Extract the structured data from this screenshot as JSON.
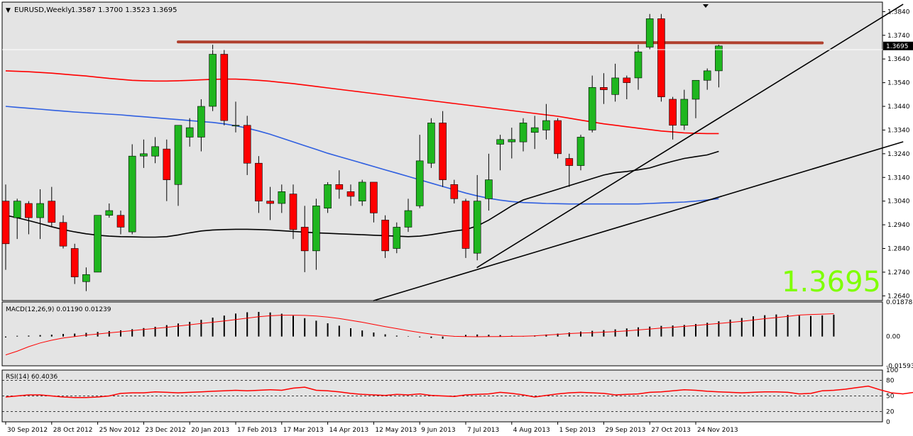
{
  "colors": {
    "background": "#e4e4e4",
    "page": "#ffffff",
    "bull": "#1fb61f",
    "bear": "#ff0000",
    "ma_red": "#ff0000",
    "ma_blue": "#2f5fe0",
    "ma_black": "#000000",
    "resistance": "#b0402e",
    "big_price": "#7fff00",
    "grid_text": "#000000"
  },
  "header": {
    "arrow_glyph": "▼",
    "symbol_label": "EURUSD,Weekly",
    "ohlc_label": "1.3587 1.3700 1.3523 1.3695"
  },
  "big_price": "1.3695",
  "price_axis": {
    "ticks": [
      "1.3840",
      "1.3740",
      "1.3640",
      "1.3540",
      "1.3440",
      "1.3340",
      "1.3240",
      "1.3140",
      "1.3040",
      "1.2940",
      "1.2840",
      "1.2740",
      "1.2640"
    ],
    "current_label": "1.3695"
  },
  "macd": {
    "label": "MACD(12,26,9) 0.01190 0.01239",
    "ticks": [
      "0.01878",
      "0.00",
      "-0.01593"
    ]
  },
  "rsi": {
    "label": "RSI(14) 60.4036",
    "ticks": [
      "100",
      "80",
      "50",
      "20",
      "0"
    ]
  },
  "time_axis": [
    "30 Sep 2012",
    "28 Oct 2012",
    "25 Nov 2012",
    "23 Dec 2012",
    "20 Jan 2013",
    "17 Feb 2013",
    "17 Mar 2013",
    "14 Apr 2013",
    "12 May 2013",
    "9 Jun 2013",
    "7 Jul 2013",
    "4 Aug 2013",
    "1 Sep 2013",
    "29 Sep 2013",
    "27 Oct 2013",
    "24 Nov 2013"
  ],
  "chart_data": {
    "type": "candlestick",
    "symbol": "EURUSD",
    "timeframe": "Weekly",
    "ylim": [
      1.262,
      1.388
    ],
    "candles": [
      {
        "o": 1.304,
        "h": 1.311,
        "l": 1.275,
        "c": 1.286
      },
      {
        "o": 1.297,
        "h": 1.305,
        "l": 1.288,
        "c": 1.304
      },
      {
        "o": 1.303,
        "h": 1.304,
        "l": 1.29,
        "c": 1.297
      },
      {
        "o": 1.297,
        "h": 1.309,
        "l": 1.288,
        "c": 1.303
      },
      {
        "o": 1.304,
        "h": 1.31,
        "l": 1.293,
        "c": 1.295
      },
      {
        "o": 1.295,
        "h": 1.298,
        "l": 1.284,
        "c": 1.285
      },
      {
        "o": 1.284,
        "h": 1.286,
        "l": 1.269,
        "c": 1.272
      },
      {
        "o": 1.27,
        "h": 1.276,
        "l": 1.266,
        "c": 1.273
      },
      {
        "o": 1.274,
        "h": 1.298,
        "l": 1.274,
        "c": 1.298
      },
      {
        "o": 1.298,
        "h": 1.303,
        "l": 1.297,
        "c": 1.3
      },
      {
        "o": 1.298,
        "h": 1.3,
        "l": 1.29,
        "c": 1.293
      },
      {
        "o": 1.291,
        "h": 1.328,
        "l": 1.29,
        "c": 1.323
      },
      {
        "o": 1.323,
        "h": 1.33,
        "l": 1.318,
        "c": 1.324
      },
      {
        "o": 1.323,
        "h": 1.331,
        "l": 1.32,
        "c": 1.327
      },
      {
        "o": 1.326,
        "h": 1.33,
        "l": 1.304,
        "c": 1.313
      },
      {
        "o": 1.311,
        "h": 1.336,
        "l": 1.302,
        "c": 1.336
      },
      {
        "o": 1.331,
        "h": 1.339,
        "l": 1.327,
        "c": 1.335
      },
      {
        "o": 1.331,
        "h": 1.347,
        "l": 1.325,
        "c": 1.344
      },
      {
        "o": 1.344,
        "h": 1.37,
        "l": 1.342,
        "c": 1.366
      },
      {
        "o": 1.366,
        "h": 1.368,
        "l": 1.336,
        "c": 1.338
      },
      {
        "o": 1.336,
        "h": 1.346,
        "l": 1.333,
        "c": 1.336
      },
      {
        "o": 1.336,
        "h": 1.34,
        "l": 1.315,
        "c": 1.32
      },
      {
        "o": 1.32,
        "h": 1.323,
        "l": 1.299,
        "c": 1.304
      },
      {
        "o": 1.304,
        "h": 1.31,
        "l": 1.296,
        "c": 1.303
      },
      {
        "o": 1.303,
        "h": 1.311,
        "l": 1.299,
        "c": 1.308
      },
      {
        "o": 1.307,
        "h": 1.311,
        "l": 1.288,
        "c": 1.292
      },
      {
        "o": 1.293,
        "h": 1.302,
        "l": 1.274,
        "c": 1.283
      },
      {
        "o": 1.283,
        "h": 1.305,
        "l": 1.275,
        "c": 1.302
      },
      {
        "o": 1.301,
        "h": 1.312,
        "l": 1.299,
        "c": 1.311
      },
      {
        "o": 1.311,
        "h": 1.317,
        "l": 1.305,
        "c": 1.309
      },
      {
        "o": 1.308,
        "h": 1.311,
        "l": 1.302,
        "c": 1.306
      },
      {
        "o": 1.304,
        "h": 1.313,
        "l": 1.302,
        "c": 1.312
      },
      {
        "o": 1.312,
        "h": 1.312,
        "l": 1.295,
        "c": 1.299
      },
      {
        "o": 1.296,
        "h": 1.298,
        "l": 1.28,
        "c": 1.283
      },
      {
        "o": 1.284,
        "h": 1.295,
        "l": 1.282,
        "c": 1.293
      },
      {
        "o": 1.293,
        "h": 1.305,
        "l": 1.291,
        "c": 1.3
      },
      {
        "o": 1.302,
        "h": 1.332,
        "l": 1.301,
        "c": 1.321
      },
      {
        "o": 1.32,
        "h": 1.339,
        "l": 1.318,
        "c": 1.337
      },
      {
        "o": 1.337,
        "h": 1.342,
        "l": 1.31,
        "c": 1.313
      },
      {
        "o": 1.311,
        "h": 1.313,
        "l": 1.303,
        "c": 1.305
      },
      {
        "o": 1.304,
        "h": 1.305,
        "l": 1.28,
        "c": 1.284
      },
      {
        "o": 1.282,
        "h": 1.315,
        "l": 1.279,
        "c": 1.304
      },
      {
        "o": 1.305,
        "h": 1.324,
        "l": 1.3,
        "c": 1.313
      },
      {
        "o": 1.328,
        "h": 1.332,
        "l": 1.317,
        "c": 1.33
      },
      {
        "o": 1.329,
        "h": 1.335,
        "l": 1.322,
        "c": 1.33
      },
      {
        "o": 1.329,
        "h": 1.339,
        "l": 1.325,
        "c": 1.337
      },
      {
        "o": 1.333,
        "h": 1.34,
        "l": 1.326,
        "c": 1.335
      },
      {
        "o": 1.334,
        "h": 1.345,
        "l": 1.33,
        "c": 1.338
      },
      {
        "o": 1.338,
        "h": 1.339,
        "l": 1.322,
        "c": 1.324
      },
      {
        "o": 1.322,
        "h": 1.324,
        "l": 1.31,
        "c": 1.319
      },
      {
        "o": 1.319,
        "h": 1.332,
        "l": 1.317,
        "c": 1.331
      },
      {
        "o": 1.334,
        "h": 1.357,
        "l": 1.333,
        "c": 1.352
      },
      {
        "o": 1.352,
        "h": 1.358,
        "l": 1.345,
        "c": 1.351
      },
      {
        "o": 1.349,
        "h": 1.362,
        "l": 1.346,
        "c": 1.356
      },
      {
        "o": 1.356,
        "h": 1.357,
        "l": 1.347,
        "c": 1.354
      },
      {
        "o": 1.356,
        "h": 1.37,
        "l": 1.351,
        "c": 1.367
      },
      {
        "o": 1.369,
        "h": 1.383,
        "l": 1.368,
        "c": 1.381
      },
      {
        "o": 1.381,
        "h": 1.383,
        "l": 1.346,
        "c": 1.348
      },
      {
        "o": 1.347,
        "h": 1.348,
        "l": 1.33,
        "c": 1.336
      },
      {
        "o": 1.336,
        "h": 1.351,
        "l": 1.334,
        "c": 1.347
      },
      {
        "o": 1.347,
        "h": 1.354,
        "l": 1.339,
        "c": 1.355
      },
      {
        "o": 1.355,
        "h": 1.36,
        "l": 1.351,
        "c": 1.359
      },
      {
        "o": 1.359,
        "h": 1.37,
        "l": 1.352,
        "c": 1.3695
      }
    ],
    "overlays": {
      "ma_red": [
        1.359,
        1.3588,
        1.3586,
        1.3583,
        1.358,
        1.3576,
        1.3572,
        1.3568,
        1.3563,
        1.3558,
        1.3554,
        1.355,
        1.3548,
        1.3547,
        1.3547,
        1.3548,
        1.355,
        1.3552,
        1.3554,
        1.3555,
        1.3555,
        1.3553,
        1.355,
        1.3546,
        1.3541,
        1.3536,
        1.353,
        1.3524,
        1.3518,
        1.3512,
        1.3506,
        1.35,
        1.3494,
        1.3488,
        1.3482,
        1.3476,
        1.347,
        1.3464,
        1.3458,
        1.3452,
        1.3446,
        1.344,
        1.3434,
        1.3428,
        1.3422,
        1.3416,
        1.341,
        1.3404,
        1.3398,
        1.339,
        1.3382,
        1.3374,
        1.3366,
        1.336,
        1.3354,
        1.3348,
        1.3342,
        1.3336,
        1.3332,
        1.3328,
        1.3326,
        1.3325,
        1.3325
      ],
      "ma_blue": [
        1.344,
        1.3436,
        1.3432,
        1.3428,
        1.3424,
        1.342,
        1.3416,
        1.3413,
        1.341,
        1.3407,
        1.3404,
        1.34,
        1.3396,
        1.3392,
        1.3388,
        1.3384,
        1.338,
        1.3376,
        1.3372,
        1.3366,
        1.3358,
        1.3348,
        1.3336,
        1.3322,
        1.3306,
        1.329,
        1.3274,
        1.3258,
        1.3242,
        1.3228,
        1.3214,
        1.32,
        1.3186,
        1.3172,
        1.3158,
        1.3144,
        1.313,
        1.3116,
        1.3102,
        1.3088,
        1.3074,
        1.3062,
        1.3052,
        1.3044,
        1.3038,
        1.3034,
        1.3032,
        1.303,
        1.3029,
        1.3028,
        1.3028,
        1.3028,
        1.3028,
        1.3028,
        1.3028,
        1.3028,
        1.303,
        1.3032,
        1.3034,
        1.3036,
        1.304,
        1.3045,
        1.305
      ],
      "ma_black": [
        1.298,
        1.297,
        1.2958,
        1.2945,
        1.2932,
        1.292,
        1.291,
        1.2902,
        1.2896,
        1.2892,
        1.289,
        1.2889,
        1.2888,
        1.2888,
        1.289,
        1.2897,
        1.2906,
        1.2914,
        1.2918,
        1.292,
        1.2921,
        1.2921,
        1.292,
        1.2918,
        1.2915,
        1.2912,
        1.2909,
        1.2906,
        1.2904,
        1.2902,
        1.29,
        1.2898,
        1.2896,
        1.2894,
        1.2892,
        1.289,
        1.2892,
        1.2898,
        1.2906,
        1.2914,
        1.292,
        1.2935,
        1.296,
        1.299,
        1.302,
        1.3045,
        1.306,
        1.3075,
        1.309,
        1.3105,
        1.312,
        1.3135,
        1.315,
        1.316,
        1.3165,
        1.3172,
        1.318,
        1.3195,
        1.3208,
        1.322,
        1.3228,
        1.3235,
        1.325
      ]
    },
    "trendlines": [
      {
        "kind": "resistance",
        "from": {
          "bar": 15,
          "price": 1.3712
        },
        "to": {
          "bar": 71,
          "price": 1.3708
        }
      },
      {
        "kind": "support",
        "from": {
          "bar": 32,
          "price": 1.262
        },
        "to": {
          "bar": 78,
          "price": 1.329
        }
      },
      {
        "kind": "support",
        "from": {
          "bar": 41,
          "price": 1.276
        },
        "to": {
          "bar": 78,
          "price": 1.387
        }
      }
    ],
    "macd": {
      "ylim": [
        -0.01593,
        0.01878
      ],
      "histogram": [
        -0.0005,
        0.0004,
        0.0005,
        0.0008,
        0.001,
        0.0014,
        0.0016,
        0.002,
        0.0025,
        0.003,
        0.0034,
        0.004,
        0.0046,
        0.0053,
        0.0062,
        0.0071,
        0.008,
        0.0091,
        0.0103,
        0.0114,
        0.0125,
        0.0132,
        0.0134,
        0.0131,
        0.0124,
        0.0113,
        0.01,
        0.0086,
        0.0072,
        0.0059,
        0.0045,
        0.0033,
        0.0022,
        0.0012,
        0.0005,
        0.0002,
        -0.0004,
        -0.0008,
        -0.0012,
        0.0002,
        0.0009,
        0.0011,
        0.001,
        0.0008,
        0.0005,
        0.0002,
        0.0006,
        0.0011,
        0.0016,
        0.0022,
        0.0027,
        0.0031,
        0.0035,
        0.0039,
        0.0044,
        0.005,
        0.0054,
        0.0058,
        0.006,
        0.0063,
        0.0068,
        0.0075,
        0.0083,
        0.0092,
        0.0101,
        0.011,
        0.0116,
        0.012,
        0.0118,
        0.0114,
        0.0112,
        0.0115,
        0.0119
      ],
      "signal": [
        -0.01,
        -0.008,
        -0.0055,
        -0.0035,
        -0.002,
        -0.0008,
        0.0,
        0.0008,
        0.0014,
        0.002,
        0.0026,
        0.0032,
        0.0038,
        0.0044,
        0.005,
        0.0057,
        0.0064,
        0.0071,
        0.0078,
        0.0085,
        0.0092,
        0.01,
        0.0108,
        0.0113,
        0.0116,
        0.0116,
        0.0115,
        0.0112,
        0.0106,
        0.0098,
        0.0088,
        0.0078,
        0.0066,
        0.0054,
        0.0043,
        0.0032,
        0.0022,
        0.0013,
        0.0006,
        0.0001,
        0.0,
        -0.0001,
        0.0,
        0.0,
        0.0001,
        0.0002,
        0.0004,
        0.0008,
        0.0012,
        0.0016,
        0.0019,
        0.0021,
        0.0024,
        0.0027,
        0.0031,
        0.0036,
        0.0041,
        0.0046,
        0.005,
        0.0055,
        0.006,
        0.0066,
        0.0071,
        0.0077,
        0.0083,
        0.009,
        0.0097,
        0.0103,
        0.011,
        0.0117,
        0.012,
        0.0122,
        0.0124
      ]
    },
    "rsi": {
      "ylim": [
        0,
        100
      ],
      "levels": [
        80,
        50,
        20
      ],
      "values": [
        48,
        50,
        52,
        52,
        50,
        48,
        47,
        47,
        48,
        50,
        55,
        56,
        56,
        58,
        57,
        56,
        57,
        58,
        59,
        60,
        61,
        60,
        61,
        62,
        61,
        65,
        67,
        61,
        60,
        58,
        55,
        53,
        52,
        51,
        53,
        52,
        54,
        51,
        50,
        49,
        52,
        53,
        54,
        57,
        55,
        52,
        48,
        51,
        54,
        56,
        57,
        56,
        55,
        52,
        53,
        54,
        57,
        58,
        60,
        62,
        61,
        59,
        58,
        57,
        56,
        57,
        58,
        58,
        57,
        54,
        55,
        60,
        61,
        63,
        66,
        69,
        62,
        56,
        54,
        57,
        58,
        59,
        60
      ]
    }
  }
}
